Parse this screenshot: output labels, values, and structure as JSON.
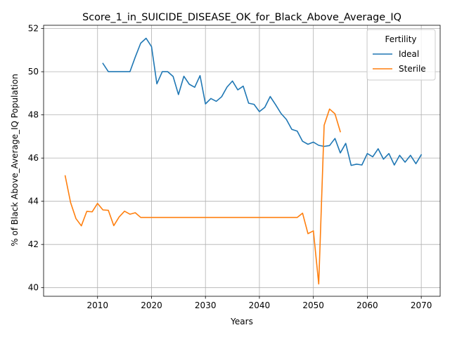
{
  "chart_data": {
    "type": "line",
    "title": "Score_1_in_SUICIDE_DISEASE_OK_for_Black_Above_Average_IQ",
    "xlabel": "Years",
    "ylabel": "% of Black Above_Average_IQ Population",
    "xlim": [
      2000,
      2073.5
    ],
    "ylim": [
      39.6,
      52.15
    ],
    "xticks": [
      2010,
      2020,
      2030,
      2040,
      2050,
      2060,
      2070
    ],
    "yticks": [
      40,
      42,
      44,
      46,
      48,
      50,
      52
    ],
    "grid": true,
    "legend": {
      "title": "Fertility",
      "position": "top-right"
    },
    "series": [
      {
        "name": "Ideal",
        "color": "#1f77b4",
        "points": [
          [
            2011,
            50.38
          ],
          [
            2012,
            50.0
          ],
          [
            2013,
            50.0
          ],
          [
            2014,
            50.0
          ],
          [
            2015,
            50.0
          ],
          [
            2016,
            50.0
          ],
          [
            2017,
            50.68
          ],
          [
            2018,
            51.32
          ],
          [
            2019,
            51.55
          ],
          [
            2020,
            51.16
          ],
          [
            2021,
            49.44
          ],
          [
            2022,
            50.0
          ],
          [
            2023,
            50.0
          ],
          [
            2024,
            49.78
          ],
          [
            2025,
            48.94
          ],
          [
            2026,
            49.79
          ],
          [
            2027,
            49.42
          ],
          [
            2028,
            49.28
          ],
          [
            2029,
            49.82
          ],
          [
            2030,
            48.51
          ],
          [
            2031,
            48.76
          ],
          [
            2032,
            48.63
          ],
          [
            2033,
            48.84
          ],
          [
            2034,
            49.29
          ],
          [
            2035,
            49.57
          ],
          [
            2036,
            49.16
          ],
          [
            2037,
            49.33
          ],
          [
            2038,
            48.54
          ],
          [
            2039,
            48.49
          ],
          [
            2040,
            48.15
          ],
          [
            2041,
            48.35
          ],
          [
            2042,
            48.85
          ],
          [
            2043,
            48.47
          ],
          [
            2044,
            48.07
          ],
          [
            2045,
            47.79
          ],
          [
            2046,
            47.33
          ],
          [
            2047,
            47.25
          ],
          [
            2048,
            46.78
          ],
          [
            2049,
            46.64
          ],
          [
            2050,
            46.74
          ],
          [
            2051,
            46.59
          ],
          [
            2052,
            46.54
          ],
          [
            2053,
            46.58
          ],
          [
            2054,
            46.91
          ],
          [
            2055,
            46.24
          ],
          [
            2056,
            46.68
          ],
          [
            2057,
            45.66
          ],
          [
            2058,
            45.72
          ],
          [
            2059,
            45.68
          ],
          [
            2060,
            46.21
          ],
          [
            2061,
            46.06
          ],
          [
            2062,
            46.43
          ],
          [
            2063,
            45.95
          ],
          [
            2064,
            46.21
          ],
          [
            2065,
            45.68
          ],
          [
            2066,
            46.13
          ],
          [
            2067,
            45.81
          ],
          [
            2068,
            46.13
          ],
          [
            2069,
            45.74
          ],
          [
            2070,
            46.15
          ]
        ]
      },
      {
        "name": "Sterile",
        "color": "#ff7f0e",
        "points": [
          [
            2004,
            45.18
          ],
          [
            2005,
            43.94
          ],
          [
            2006,
            43.2
          ],
          [
            2007,
            42.86
          ],
          [
            2008,
            43.53
          ],
          [
            2009,
            43.51
          ],
          [
            2010,
            43.9
          ],
          [
            2011,
            43.6
          ],
          [
            2012,
            43.58
          ],
          [
            2013,
            42.87
          ],
          [
            2014,
            43.27
          ],
          [
            2015,
            43.54
          ],
          [
            2016,
            43.4
          ],
          [
            2017,
            43.47
          ],
          [
            2018,
            43.25
          ],
          [
            2019,
            43.25
          ],
          [
            2020,
            43.25
          ],
          [
            2025,
            43.25
          ],
          [
            2030,
            43.25
          ],
          [
            2035,
            43.25
          ],
          [
            2040,
            43.25
          ],
          [
            2045,
            43.25
          ],
          [
            2047,
            43.25
          ],
          [
            2048,
            43.45
          ],
          [
            2049,
            42.5
          ],
          [
            2050,
            42.63
          ],
          [
            2051,
            40.17
          ],
          [
            2052,
            47.52
          ],
          [
            2053,
            48.27
          ],
          [
            2054,
            48.05
          ],
          [
            2055,
            47.22
          ]
        ]
      }
    ]
  }
}
